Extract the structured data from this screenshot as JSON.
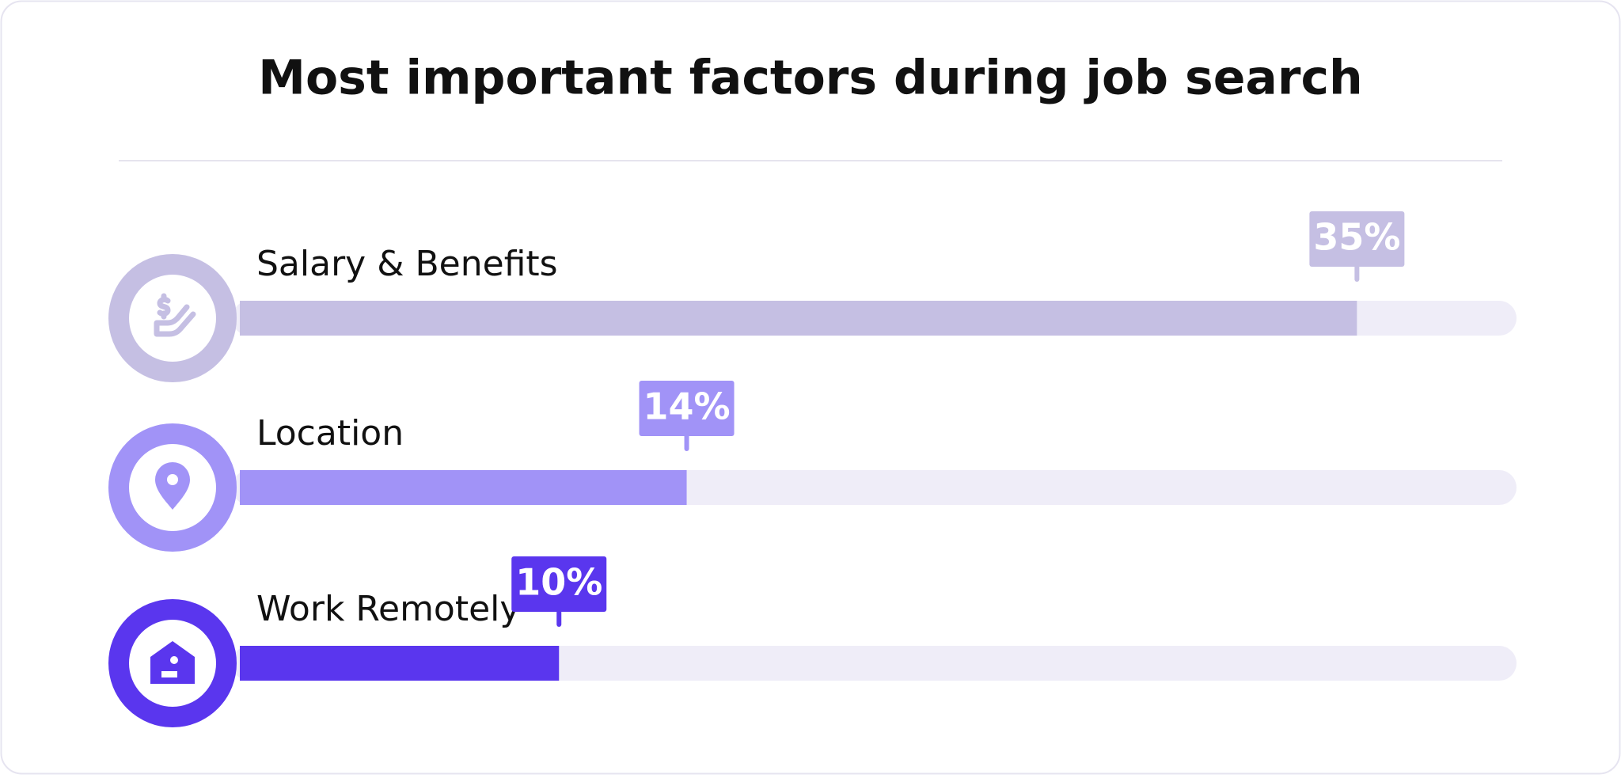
{
  "chart_data": {
    "type": "hbar",
    "title": "Most important factors during job search",
    "categories": [
      "Salary & Benefits",
      "Location",
      "Work Remotely"
    ],
    "values": [
      35,
      14,
      10
    ],
    "value_labels": [
      "35%",
      "14%",
      "10%"
    ],
    "colors": [
      "#c5bfe3",
      "#a193f7",
      "#5a36ee"
    ],
    "xlim": [
      0,
      40
    ]
  }
}
